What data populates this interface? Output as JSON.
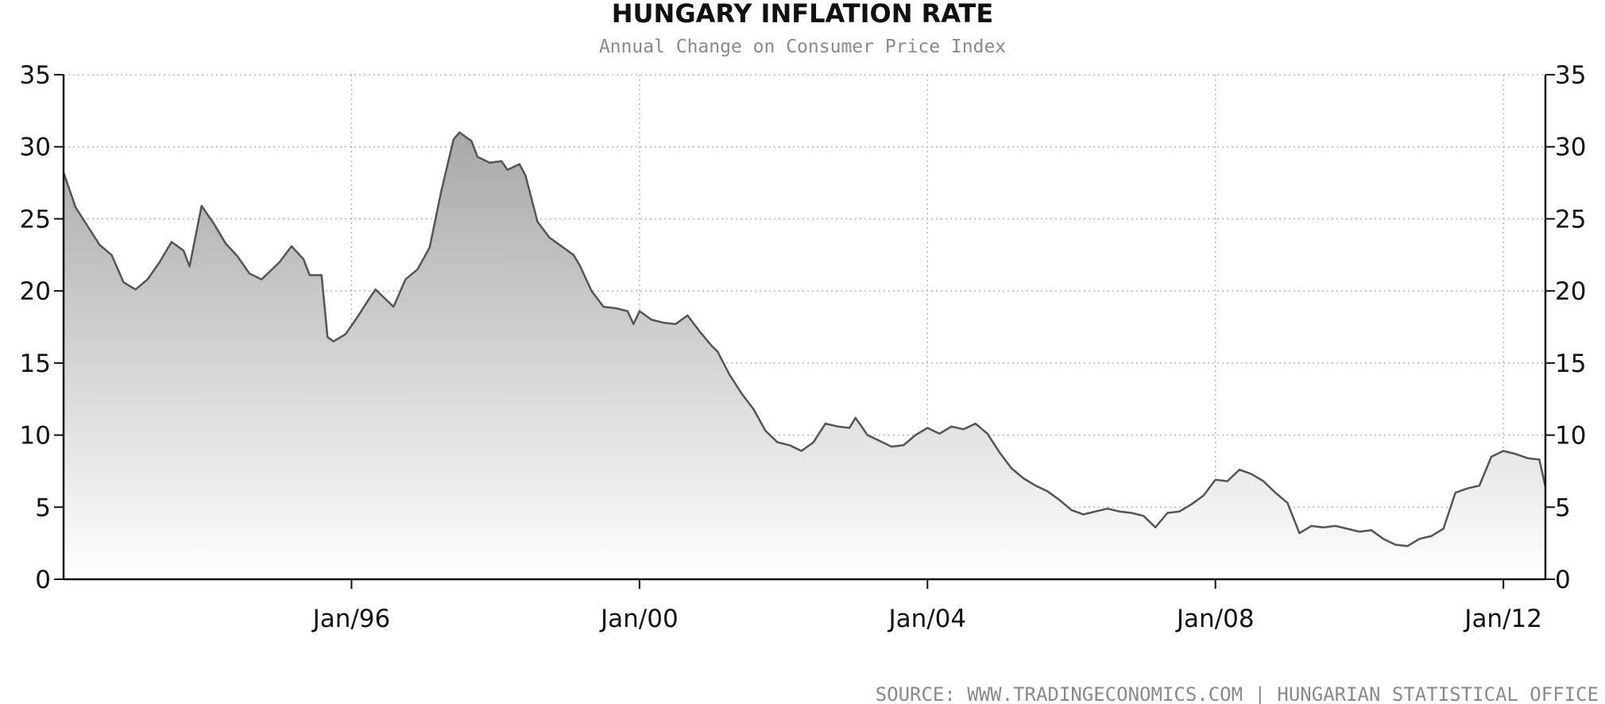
{
  "chart_data": {
    "type": "area",
    "title": "HUNGARY INFLATION RATE",
    "subtitle": "Annual Change on Consumer Price Index",
    "source": "SOURCE:  WWW.TRADINGECONOMICS.COM  |  HUNGARIAN  STATISTICAL  OFFICE",
    "xlabel": "",
    "ylabel": "",
    "x_range": [
      "1992-01",
      "2012-08"
    ],
    "ylim": [
      0,
      35
    ],
    "yticks": [
      "0",
      "5",
      "10",
      "15",
      "20",
      "25",
      "30",
      "35"
    ],
    "xticks": [
      {
        "label": "Jan/96",
        "date": "1996-01"
      },
      {
        "label": "Jan/00",
        "date": "2000-01"
      },
      {
        "label": "Jan/04",
        "date": "2004-01"
      },
      {
        "label": "Jan/08",
        "date": "2008-01"
      },
      {
        "label": "Jan/12",
        "date": "2012-01"
      }
    ],
    "grid": true,
    "legend": "none",
    "colors": {
      "line": "#555555",
      "fill_top": "#a8a8a8",
      "fill_bottom": "#ffffff",
      "grid": "#b8b8b8",
      "axis": "#111111"
    },
    "series": [
      {
        "points": [
          [
            "1992-01",
            28.2
          ],
          [
            "1992-02",
            27.0
          ],
          [
            "1992-03",
            25.8
          ],
          [
            "1992-05",
            24.5
          ],
          [
            "1992-07",
            23.2
          ],
          [
            "1992-09",
            22.5
          ],
          [
            "1992-11",
            20.6
          ],
          [
            "1993-01",
            20.1
          ],
          [
            "1993-03",
            20.8
          ],
          [
            "1993-05",
            22.0
          ],
          [
            "1993-07",
            23.4
          ],
          [
            "1993-09",
            22.8
          ],
          [
            "1993-10",
            21.7
          ],
          [
            "1993-12",
            25.9
          ],
          [
            "1994-02",
            24.7
          ],
          [
            "1994-04",
            23.3
          ],
          [
            "1994-06",
            22.4
          ],
          [
            "1994-08",
            21.2
          ],
          [
            "1994-10",
            20.8
          ],
          [
            "1995-01",
            22.0
          ],
          [
            "1995-03",
            23.1
          ],
          [
            "1995-05",
            22.2
          ],
          [
            "1995-06",
            21.1
          ],
          [
            "1995-08",
            21.1
          ],
          [
            "1995-09",
            16.8
          ],
          [
            "1995-10",
            16.5
          ],
          [
            "1995-12",
            17.0
          ],
          [
            "1996-02",
            18.2
          ],
          [
            "1996-04",
            19.5
          ],
          [
            "1996-05",
            20.1
          ],
          [
            "1996-07",
            19.3
          ],
          [
            "1996-08",
            18.9
          ],
          [
            "1996-10",
            20.8
          ],
          [
            "1996-12",
            21.5
          ],
          [
            "1997-02",
            23.0
          ],
          [
            "1997-04",
            27.0
          ],
          [
            "1997-06",
            30.5
          ],
          [
            "1997-07",
            31.0
          ],
          [
            "1997-09",
            30.4
          ],
          [
            "1997-10",
            29.3
          ],
          [
            "1997-12",
            28.9
          ],
          [
            "1998-02",
            29.0
          ],
          [
            "1998-03",
            28.4
          ],
          [
            "1998-05",
            28.8
          ],
          [
            "1998-06",
            28.0
          ],
          [
            "1998-08",
            24.8
          ],
          [
            "1998-10",
            23.7
          ],
          [
            "1998-12",
            23.1
          ],
          [
            "1999-02",
            22.5
          ],
          [
            "1999-03",
            21.8
          ],
          [
            "1999-05",
            20.0
          ],
          [
            "1999-07",
            18.9
          ],
          [
            "1999-09",
            18.8
          ],
          [
            "1999-11",
            18.6
          ],
          [
            "1999-12",
            17.7
          ],
          [
            "2000-01",
            18.6
          ],
          [
            "2000-03",
            18.0
          ],
          [
            "2000-05",
            17.8
          ],
          [
            "2000-07",
            17.7
          ],
          [
            "2000-09",
            18.3
          ],
          [
            "2000-11",
            17.2
          ],
          [
            "2001-01",
            16.2
          ],
          [
            "2001-02",
            15.8
          ],
          [
            "2001-04",
            14.2
          ],
          [
            "2001-06",
            12.9
          ],
          [
            "2001-08",
            11.8
          ],
          [
            "2001-10",
            10.3
          ],
          [
            "2001-12",
            9.5
          ],
          [
            "2002-02",
            9.3
          ],
          [
            "2002-04",
            8.9
          ],
          [
            "2002-06",
            9.5
          ],
          [
            "2002-08",
            10.8
          ],
          [
            "2002-10",
            10.6
          ],
          [
            "2002-12",
            10.5
          ],
          [
            "2003-01",
            11.2
          ],
          [
            "2003-03",
            10.0
          ],
          [
            "2003-05",
            9.6
          ],
          [
            "2003-07",
            9.2
          ],
          [
            "2003-09",
            9.3
          ],
          [
            "2003-11",
            10.0
          ],
          [
            "2004-01",
            10.5
          ],
          [
            "2004-03",
            10.1
          ],
          [
            "2004-05",
            10.6
          ],
          [
            "2004-07",
            10.4
          ],
          [
            "2004-09",
            10.8
          ],
          [
            "2004-11",
            10.1
          ],
          [
            "2005-01",
            8.8
          ],
          [
            "2005-03",
            7.7
          ],
          [
            "2005-05",
            7.0
          ],
          [
            "2005-07",
            6.5
          ],
          [
            "2005-09",
            6.1
          ],
          [
            "2005-11",
            5.5
          ],
          [
            "2006-01",
            4.8
          ],
          [
            "2006-03",
            4.5
          ],
          [
            "2006-05",
            4.7
          ],
          [
            "2006-07",
            4.9
          ],
          [
            "2006-09",
            4.7
          ],
          [
            "2006-11",
            4.6
          ],
          [
            "2007-01",
            4.4
          ],
          [
            "2007-03",
            3.6
          ],
          [
            "2007-05",
            4.6
          ],
          [
            "2007-07",
            4.7
          ],
          [
            "2007-09",
            5.2
          ],
          [
            "2007-11",
            5.8
          ],
          [
            "2008-01",
            6.9
          ],
          [
            "2008-03",
            6.8
          ],
          [
            "2008-05",
            7.6
          ],
          [
            "2008-07",
            7.3
          ],
          [
            "2008-09",
            6.8
          ],
          [
            "2008-11",
            6.0
          ],
          [
            "2009-01",
            5.3
          ],
          [
            "2009-03",
            3.2
          ],
          [
            "2009-05",
            3.7
          ],
          [
            "2009-07",
            3.6
          ],
          [
            "2009-09",
            3.7
          ],
          [
            "2009-11",
            3.5
          ],
          [
            "2010-01",
            3.3
          ],
          [
            "2010-03",
            3.4
          ],
          [
            "2010-05",
            2.8
          ],
          [
            "2010-07",
            2.4
          ],
          [
            "2010-09",
            2.3
          ],
          [
            "2010-11",
            2.8
          ],
          [
            "2011-01",
            3.0
          ],
          [
            "2011-03",
            3.5
          ],
          [
            "2011-05",
            6.0
          ],
          [
            "2011-07",
            6.3
          ],
          [
            "2011-09",
            6.5
          ],
          [
            "2011-11",
            8.5
          ],
          [
            "2012-01",
            8.9
          ],
          [
            "2012-03",
            8.7
          ],
          [
            "2012-05",
            8.4
          ],
          [
            "2012-07",
            8.3
          ],
          [
            "2012-08",
            6.4
          ]
        ]
      }
    ]
  }
}
